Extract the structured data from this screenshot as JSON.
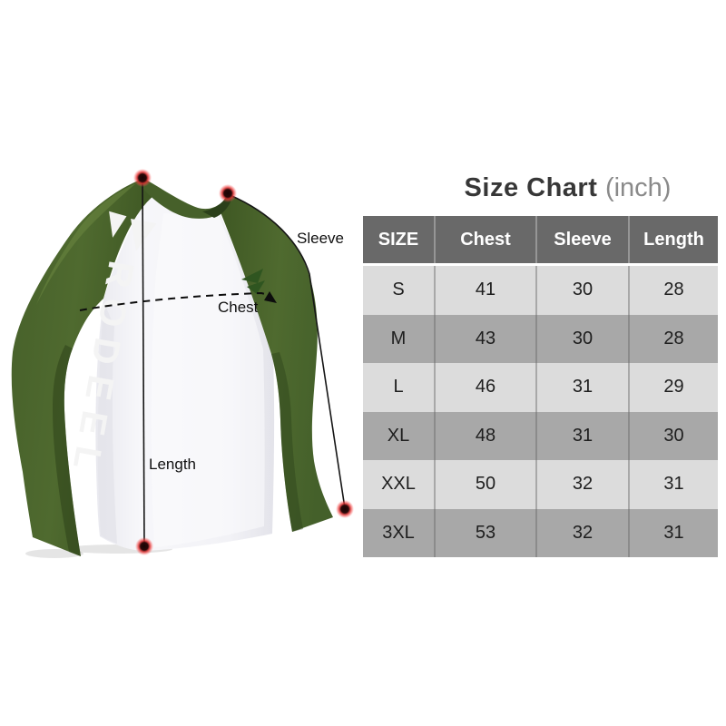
{
  "title": {
    "main": "Size Chart",
    "unit": "(inch)"
  },
  "brand": {
    "sleeve_text": "RODEEL"
  },
  "annotations": {
    "sleeve_label": "Sleeve",
    "chest_label": "Chest",
    "length_label": "Length"
  },
  "size_table": {
    "columns": [
      "SIZE",
      "Chest",
      "Sleeve",
      "Length"
    ],
    "rows": [
      {
        "size": "S",
        "chest": "41",
        "sleeve": "30",
        "length": "28"
      },
      {
        "size": "M",
        "chest": "43",
        "sleeve": "30",
        "length": "28"
      },
      {
        "size": "L",
        "chest": "46",
        "sleeve": "31",
        "length": "29"
      },
      {
        "size": "XL",
        "chest": "48",
        "sleeve": "31",
        "length": "30"
      },
      {
        "size": "XXL",
        "chest": "50",
        "sleeve": "32",
        "length": "31"
      },
      {
        "size": "3XL",
        "chest": "53",
        "sleeve": "32",
        "length": "31"
      }
    ]
  },
  "chart_data": {
    "type": "table",
    "title": "Size Chart (inch)",
    "columns": [
      "SIZE",
      "Chest",
      "Sleeve",
      "Length"
    ],
    "rows": [
      [
        "S",
        41,
        30,
        28
      ],
      [
        "M",
        43,
        30,
        28
      ],
      [
        "L",
        46,
        31,
        29
      ],
      [
        "XL",
        48,
        31,
        30
      ],
      [
        "XXL",
        50,
        32,
        31
      ],
      [
        "3XL",
        53,
        32,
        31
      ]
    ]
  },
  "colors": {
    "accent_green": "#4d682e",
    "table_header_bg": "#696969",
    "row_light": "#dcdcdc",
    "row_dark": "#a8a8a8",
    "dot_red": "#e03131"
  }
}
